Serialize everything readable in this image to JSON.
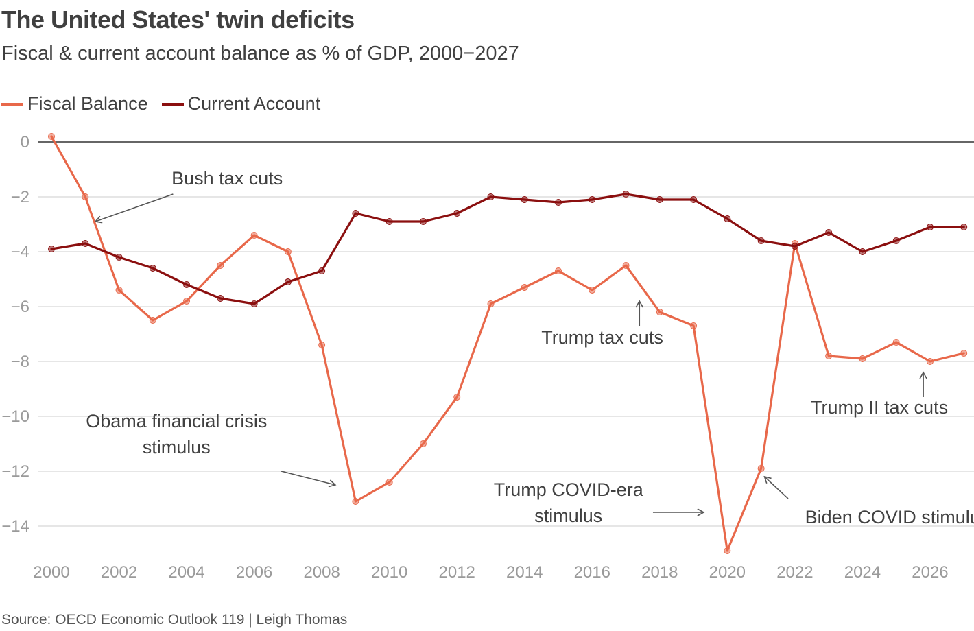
{
  "header": {
    "title": "The United States' twin deficits",
    "subtitle": "Fiscal & current account balance as % of GDP, 2000−2027"
  },
  "footer": {
    "source": "Source: OECD Economic Outlook 119 | Leigh Thomas"
  },
  "colors": {
    "fiscal": "#e8684a",
    "current_account": "#8b0f0f",
    "grid": "#cccccc",
    "zero_line": "#333333",
    "annotation_arrow": "#555555"
  },
  "chart_data": {
    "type": "line",
    "title": "The United States' twin deficits",
    "subtitle": "Fiscal & current account balance as % of GDP, 2000−2027",
    "xlabel": "",
    "ylabel": "",
    "x": [
      2000,
      2001,
      2002,
      2003,
      2004,
      2005,
      2006,
      2007,
      2008,
      2009,
      2010,
      2011,
      2012,
      2013,
      2014,
      2015,
      2016,
      2017,
      2018,
      2019,
      2020,
      2021,
      2022,
      2023,
      2024,
      2025,
      2026,
      2027
    ],
    "xlim": [
      2000,
      2027.3
    ],
    "ylim": [
      -15.2,
      0.3
    ],
    "x_ticks": [
      2000,
      2002,
      2004,
      2006,
      2008,
      2010,
      2012,
      2014,
      2016,
      2018,
      2020,
      2022,
      2024,
      2026
    ],
    "x_tick_labels": [
      "2000",
      "2002",
      "2004",
      "2006",
      "2008",
      "2010",
      "2012",
      "2014",
      "2016",
      "2018",
      "2020",
      "2022",
      "2024",
      "2026"
    ],
    "y_ticks": [
      0,
      -2,
      -4,
      -6,
      -8,
      -10,
      -12,
      -14
    ],
    "y_tick_labels": [
      "0",
      "−2",
      "−4",
      "−6",
      "−8",
      "−10",
      "−12",
      "−14"
    ],
    "grid": true,
    "legend_position": "top-left",
    "series": [
      {
        "name": "Fiscal Balance",
        "color": "#e8684a",
        "values": [
          0.2,
          -2.0,
          -5.4,
          -6.5,
          -5.8,
          -4.5,
          -3.4,
          -4.0,
          -7.4,
          -13.1,
          -12.4,
          -11.0,
          -9.3,
          -5.9,
          -5.3,
          -4.7,
          -5.4,
          -4.5,
          -6.2,
          -6.7,
          -14.9,
          -11.9,
          -3.7,
          -7.8,
          -7.9,
          -7.3,
          -8.0,
          -7.7
        ]
      },
      {
        "name": "Current Account",
        "color": "#8b0f0f",
        "values": [
          -3.9,
          -3.7,
          -4.2,
          -4.6,
          -5.2,
          -5.7,
          -5.9,
          -5.1,
          -4.7,
          -2.6,
          -2.9,
          -2.9,
          -2.6,
          -2.0,
          -2.1,
          -2.2,
          -2.1,
          -1.9,
          -2.1,
          -2.1,
          -2.8,
          -3.6,
          -3.8,
          -3.3,
          -4.0,
          -3.6,
          -3.1,
          -3.1
        ]
      }
    ],
    "annotations": [
      {
        "lines": [
          "Bush tax cuts"
        ],
        "align": "middle",
        "tx": 2005.2,
        "ty": -1.55,
        "ax1": 2003.6,
        "ay1": -1.9,
        "ax2": 2001.3,
        "ay2": -2.9
      },
      {
        "lines": [
          "Obama financial crisis",
          "stimulus"
        ],
        "align": "middle",
        "tx": 2003.7,
        "ty": -10.4,
        "ax1": 2006.8,
        "ay1": -12.0,
        "ax2": 2008.4,
        "ay2": -12.5
      },
      {
        "lines": [
          "Trump tax cuts"
        ],
        "align": "middle",
        "tx": 2016.3,
        "ty": -7.35,
        "ax1": 2017.4,
        "ay1": -6.7,
        "ax2": 2017.4,
        "ay2": -5.8
      },
      {
        "lines": [
          "Trump COVID-era",
          "stimulus"
        ],
        "align": "middle",
        "tx": 2015.3,
        "ty": -12.9,
        "ax1": 2017.8,
        "ay1": -13.5,
        "ax2": 2019.3,
        "ay2": -13.5
      },
      {
        "lines": [
          "Biden COVID stimulus"
        ],
        "align": "start",
        "tx": 2022.3,
        "ty": -13.9,
        "ax1": 2021.8,
        "ay1": -13.0,
        "ax2": 2021.1,
        "ay2": -12.2
      },
      {
        "lines": [
          "Trump II tax cuts"
        ],
        "align": "middle",
        "tx": 2024.5,
        "ty": -9.9,
        "ax1": 2025.8,
        "ay1": -9.3,
        "ax2": 2025.8,
        "ay2": -8.4
      }
    ]
  }
}
